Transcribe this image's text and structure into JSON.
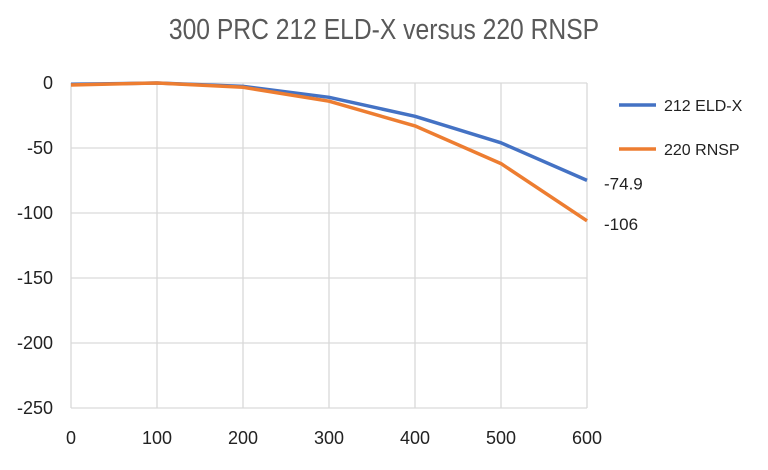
{
  "chart_data": {
    "type": "line",
    "title": "300 PRC  212 ELD-X  versus  220 RNSP",
    "x": [
      0,
      100,
      200,
      300,
      400,
      500,
      600
    ],
    "xlim": [
      0,
      600
    ],
    "ylim": [
      -250,
      0
    ],
    "xticks": [
      "0",
      "100",
      "200",
      "300",
      "400",
      "500",
      "600"
    ],
    "yticks": [
      "0",
      "-50",
      "-100",
      "-150",
      "-200",
      "-250"
    ],
    "ytick_values": [
      0,
      -50,
      -100,
      -150,
      -200,
      -250
    ],
    "grid": true,
    "legend_position": "right",
    "series": [
      {
        "name": "212 ELD-X",
        "color": "#4472C4",
        "values": [
          -1,
          0,
          -2.6,
          -11,
          -25.6,
          -46,
          -74.9
        ],
        "end_label": "-74.9"
      },
      {
        "name": "220 RNSP",
        "color": "#ED7D31",
        "values": [
          -1.5,
          0,
          -3.3,
          -14,
          -33,
          -62,
          -106
        ],
        "end_label": "-106"
      }
    ]
  }
}
